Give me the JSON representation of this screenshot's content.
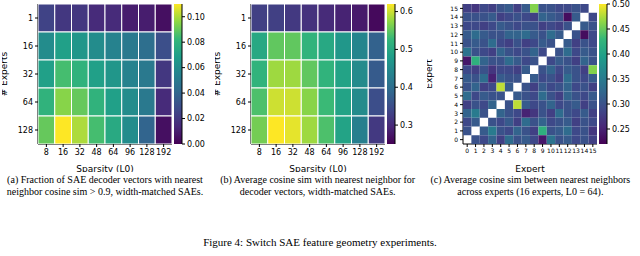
{
  "chart_data": [
    {
      "type": "heatmap",
      "caption": "(a) Fraction of SAE decoder vectors with nearest neighbor cosine sim > 0.9, width-matched SAEs.",
      "x_label": "Sparsity (L0)",
      "y_label": "# Experts",
      "x": [
        8,
        16,
        32,
        48,
        64,
        96,
        128,
        192
      ],
      "y": [
        1,
        16,
        32,
        64,
        128
      ],
      "grid": true,
      "cells": [
        [
          0.025,
          0.02,
          0.02,
          0.015,
          0.015,
          0.01,
          0.01,
          0.005
        ],
        [
          0.06,
          0.07,
          0.065,
          0.06,
          0.055,
          0.05,
          0.045,
          0.03
        ],
        [
          0.07,
          0.085,
          0.08,
          0.07,
          0.065,
          0.055,
          0.05,
          0.02
        ],
        [
          0.08,
          0.095,
          0.09,
          0.08,
          0.07,
          0.06,
          0.05,
          0.015
        ],
        [
          0.09,
          0.11,
          0.1,
          0.085,
          0.075,
          0.06,
          0.04,
          0.005
        ]
      ],
      "colorbar": {
        "range": [
          0,
          0.11
        ],
        "ticks": [
          {
            "value": 0,
            "label": "0.00"
          },
          {
            "value": 0.02,
            "label": "0.02"
          },
          {
            "value": 0.04,
            "label": "0.04"
          },
          {
            "value": 0.06,
            "label": "0.06"
          },
          {
            "value": 0.08,
            "label": "0.08"
          },
          {
            "value": 0.1,
            "label": "0.10"
          }
        ]
      }
    },
    {
      "type": "heatmap",
      "caption": "(b) Average cosine sim with nearest neighbor for decoder vectors, width-matched SAEs.",
      "x_label": "Sparsity (L0)",
      "y_label": "# Experts",
      "x": [
        8,
        16,
        32,
        48,
        64,
        96,
        128,
        192
      ],
      "y": [
        1,
        16,
        32,
        64,
        128
      ],
      "grid": true,
      "cells": [
        [
          0.33,
          0.33,
          0.32,
          0.31,
          0.3,
          0.29,
          0.28,
          0.26
        ],
        [
          0.5,
          0.55,
          0.55,
          0.52,
          0.5,
          0.47,
          0.44,
          0.38
        ],
        [
          0.52,
          0.58,
          0.58,
          0.55,
          0.52,
          0.49,
          0.45,
          0.37
        ],
        [
          0.54,
          0.6,
          0.6,
          0.57,
          0.53,
          0.49,
          0.45,
          0.35
        ],
        [
          0.56,
          0.62,
          0.61,
          0.58,
          0.54,
          0.49,
          0.43,
          0.32
        ]
      ],
      "colorbar": {
        "range": [
          0.25,
          0.62
        ],
        "ticks": [
          0.3,
          0.4,
          0.5,
          0.6
        ]
      }
    },
    {
      "type": "heatmap",
      "caption": "(c) Average cosine sim between nearest neighbors across experts (16 experts, L0 = 64).",
      "x_label": "Expert",
      "y_label": "Expert",
      "x": [
        0,
        1,
        2,
        3,
        4,
        5,
        6,
        7,
        8,
        9,
        10,
        11,
        12,
        13,
        14,
        15
      ],
      "y": [
        15,
        14,
        13,
        12,
        11,
        10,
        9,
        8,
        7,
        6,
        5,
        4,
        3,
        2,
        1,
        0
      ],
      "grid": false,
      "cells": [
        [
          0.28,
          0.27,
          0.29,
          0.28,
          0.3,
          0.31,
          0.28,
          0.31,
          0.46,
          0.3,
          0.3,
          0.29,
          0.29,
          0.3,
          0.29,
          null
        ],
        [
          0.3,
          0.3,
          0.3,
          0.31,
          0.28,
          0.29,
          0.3,
          0.29,
          0.28,
          0.32,
          0.31,
          0.3,
          0.23,
          0.31,
          null,
          0.29
        ],
        [
          0.29,
          0.29,
          0.28,
          0.29,
          0.31,
          0.3,
          0.29,
          0.3,
          0.3,
          0.28,
          0.29,
          0.28,
          0.3,
          null,
          0.31,
          0.3
        ],
        [
          0.31,
          0.33,
          0.31,
          0.3,
          0.3,
          0.32,
          0.32,
          0.33,
          0.31,
          0.3,
          0.33,
          0.31,
          null,
          0.3,
          0.23,
          0.29
        ],
        [
          0.3,
          0.31,
          0.3,
          0.33,
          0.29,
          0.28,
          0.3,
          0.28,
          0.29,
          0.31,
          0.3,
          null,
          0.31,
          0.28,
          0.3,
          0.29
        ],
        [
          0.34,
          0.3,
          0.29,
          0.28,
          0.32,
          0.3,
          0.29,
          0.3,
          0.32,
          0.29,
          null,
          0.3,
          0.33,
          0.29,
          0.31,
          0.3
        ],
        [
          0.24,
          0.42,
          0.32,
          0.3,
          0.3,
          0.33,
          0.31,
          0.29,
          0.3,
          null,
          0.29,
          0.31,
          0.3,
          0.28,
          0.32,
          0.3
        ],
        [
          0.29,
          0.28,
          0.3,
          0.27,
          0.29,
          0.29,
          0.28,
          0.31,
          null,
          0.3,
          0.32,
          0.29,
          0.31,
          0.3,
          0.28,
          0.46
        ],
        [
          0.31,
          0.3,
          0.33,
          0.25,
          0.31,
          0.3,
          0.3,
          null,
          0.31,
          0.29,
          0.3,
          0.28,
          0.33,
          0.3,
          0.29,
          0.31
        ],
        [
          0.3,
          0.32,
          0.28,
          0.29,
          0.48,
          0.31,
          null,
          0.3,
          0.28,
          0.31,
          0.29,
          0.3,
          0.32,
          0.29,
          0.3,
          0.28
        ],
        [
          0.33,
          0.29,
          0.31,
          0.3,
          0.3,
          null,
          0.31,
          0.3,
          0.29,
          0.33,
          0.3,
          0.28,
          0.32,
          0.3,
          0.29,
          0.31
        ],
        [
          0.28,
          0.3,
          0.29,
          0.32,
          null,
          0.3,
          0.48,
          0.31,
          0.29,
          0.3,
          0.32,
          0.29,
          0.3,
          0.31,
          0.28,
          0.3
        ],
        [
          0.32,
          0.35,
          0.3,
          null,
          0.32,
          0.3,
          0.29,
          0.25,
          0.27,
          0.3,
          0.28,
          0.33,
          0.3,
          0.29,
          0.31,
          0.28
        ],
        [
          0.29,
          0.31,
          null,
          0.3,
          0.29,
          0.31,
          0.28,
          0.33,
          0.3,
          0.32,
          0.29,
          0.3,
          0.31,
          0.28,
          0.3,
          0.29
        ],
        [
          0.3,
          null,
          0.31,
          0.35,
          0.3,
          0.29,
          0.32,
          0.3,
          0.28,
          0.42,
          0.3,
          0.31,
          0.33,
          0.29,
          0.3,
          0.27
        ],
        [
          null,
          0.3,
          0.29,
          0.32,
          0.28,
          0.33,
          0.3,
          0.31,
          0.29,
          0.24,
          0.34,
          0.3,
          0.31,
          0.29,
          0.3,
          0.28
        ]
      ],
      "colorbar": {
        "range": [
          0.22,
          0.5
        ],
        "ticks": [
          0.25,
          {
            "value": 0.3,
            "label": "0.30"
          },
          0.35,
          {
            "value": 0.4,
            "label": "0.40"
          },
          0.45,
          {
            "value": 0.5,
            "label": "0.50"
          }
        ]
      }
    }
  ],
  "caption": "Figure 4: Switch SAE feature geometry experiments."
}
